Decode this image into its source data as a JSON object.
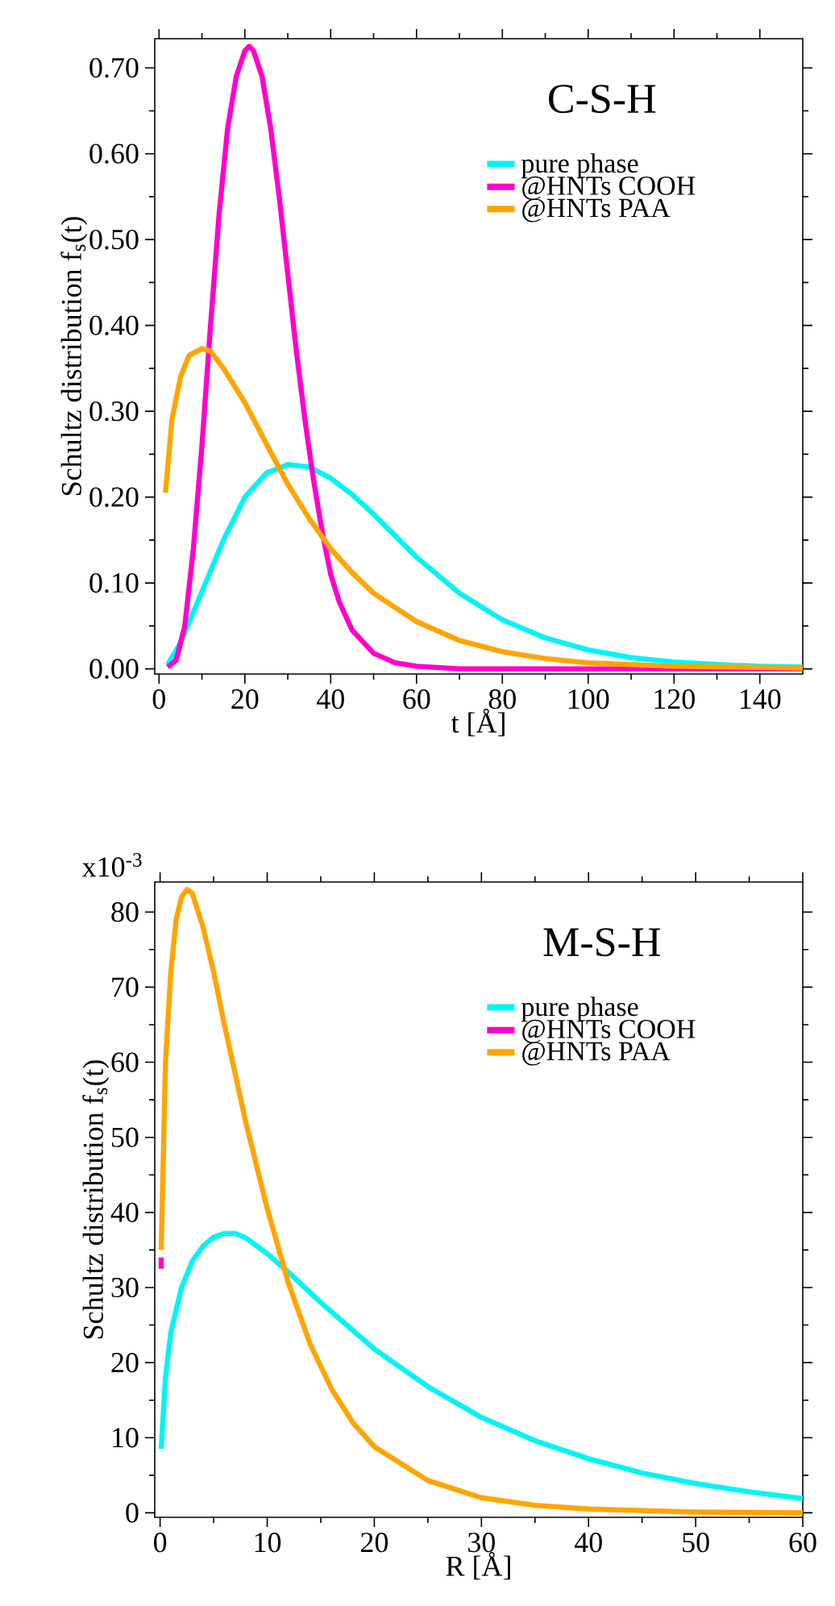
{
  "chart_data": [
    {
      "type": "line",
      "title": "C-S-H",
      "xlabel": "t [Å]",
      "ylabel": "Schultz distribution f$_{s}$(t)",
      "legend": "top right",
      "xlim": [
        -1,
        150
      ],
      "ylim": [
        -0.006,
        0.734
      ],
      "xticks": [
        0,
        20,
        40,
        60,
        80,
        100,
        120,
        140
      ],
      "yticks": [
        {
          "value": 0,
          "label": "0.00"
        },
        {
          "value": 0.1,
          "label": "0.10"
        },
        {
          "value": 0.2,
          "label": "0.20"
        },
        {
          "value": 0.3,
          "label": "0.30"
        },
        {
          "value": 0.4,
          "label": "0.40"
        },
        {
          "value": 0.5,
          "label": "0.50"
        },
        {
          "value": 0.6,
          "label": "0.60"
        },
        {
          "value": 0.7,
          "label": "0.70"
        }
      ],
      "series": [
        {
          "name": "pure phase",
          "color": "#00f4f4",
          "x": [
            2,
            5,
            10,
            15,
            20,
            25,
            30,
            35,
            40,
            45,
            50,
            55,
            60,
            70,
            80,
            90,
            100,
            110,
            120,
            130,
            140,
            150
          ],
          "values": [
            0.005,
            0.03,
            0.09,
            0.15,
            0.2,
            0.228,
            0.238,
            0.235,
            0.222,
            0.203,
            0.18,
            0.155,
            0.13,
            0.088,
            0.057,
            0.036,
            0.022,
            0.013,
            0.008,
            0.005,
            0.003,
            0.002
          ]
        },
        {
          "name": "@HNTs COOH",
          "color": "#ff00cc",
          "x": [
            2,
            4,
            6,
            8,
            10,
            12,
            14,
            16,
            18,
            20,
            21,
            22,
            24,
            26,
            28,
            30,
            32,
            34,
            36,
            38,
            40,
            42,
            45,
            50,
            55,
            60,
            70,
            80,
            150
          ],
          "values": [
            0.002,
            0.01,
            0.05,
            0.14,
            0.26,
            0.4,
            0.53,
            0.63,
            0.69,
            0.72,
            0.725,
            0.72,
            0.69,
            0.63,
            0.55,
            0.46,
            0.37,
            0.29,
            0.22,
            0.16,
            0.11,
            0.078,
            0.045,
            0.018,
            0.007,
            0.003,
            0,
            0,
            0
          ]
        },
        {
          "name": "@HNTs PAA",
          "color": "#ffa500",
          "x": [
            1.5,
            3,
            5,
            7,
            10,
            12,
            15,
            20,
            25,
            30,
            35,
            40,
            45,
            50,
            60,
            70,
            80,
            90,
            100,
            120,
            150
          ],
          "values": [
            0.205,
            0.29,
            0.34,
            0.365,
            0.373,
            0.37,
            0.35,
            0.31,
            0.262,
            0.215,
            0.175,
            0.14,
            0.112,
            0.088,
            0.055,
            0.033,
            0.02,
            0.012,
            0.007,
            0.003,
            0.001
          ]
        }
      ]
    },
    {
      "type": "line",
      "title": "M-S-H",
      "xlabel": "R [Å]",
      "ylabel": "Schultz distribution f$_{s}$(t)",
      "legend": "top right",
      "xlim": [
        -0.5,
        60
      ],
      "ylim": [
        -0.6,
        84
      ],
      "xticks": [
        0,
        10,
        20,
        30,
        40,
        50,
        60
      ],
      "yticks": [
        0,
        10,
        20,
        30,
        40,
        50,
        60,
        70,
        80
      ],
      "annotations": [
        "x10$^{-3}$"
      ],
      "series": [
        {
          "name": "pure phase",
          "color": "#00f4f4",
          "x": [
            0.1,
            0.5,
            1,
            2,
            3,
            4,
            5,
            6,
            7,
            8,
            10,
            12,
            15,
            20,
            25,
            30,
            35,
            40,
            45,
            50,
            55,
            60
          ],
          "values": [
            8.5,
            18,
            24,
            30,
            33.5,
            35.5,
            36.7,
            37.2,
            37.2,
            36.6,
            34.5,
            32,
            28,
            21.8,
            16.8,
            12.7,
            9.6,
            7.2,
            5.3,
            3.9,
            2.8,
            1.9
          ]
        },
        {
          "name": "@HNTs COOH",
          "color": "#ff00cc",
          "x": [
            0.1,
            0.1
          ],
          "values": [
            32.5,
            34
          ]
        },
        {
          "name": "@HNTs PAA",
          "color": "#ffa500",
          "x": [
            0.1,
            0.5,
            1,
            1.5,
            2,
            2.5,
            3,
            4,
            5,
            6,
            8,
            10,
            12,
            14,
            16,
            18,
            20,
            25,
            30,
            35,
            40,
            50,
            60
          ],
          "values": [
            35,
            60,
            72,
            79,
            82,
            83,
            82.5,
            78,
            72,
            65,
            52,
            40.5,
            30.5,
            22.5,
            16.5,
            12,
            8.8,
            4.3,
            2,
            1,
            0.5,
            0.1,
            0
          ]
        }
      ]
    }
  ]
}
